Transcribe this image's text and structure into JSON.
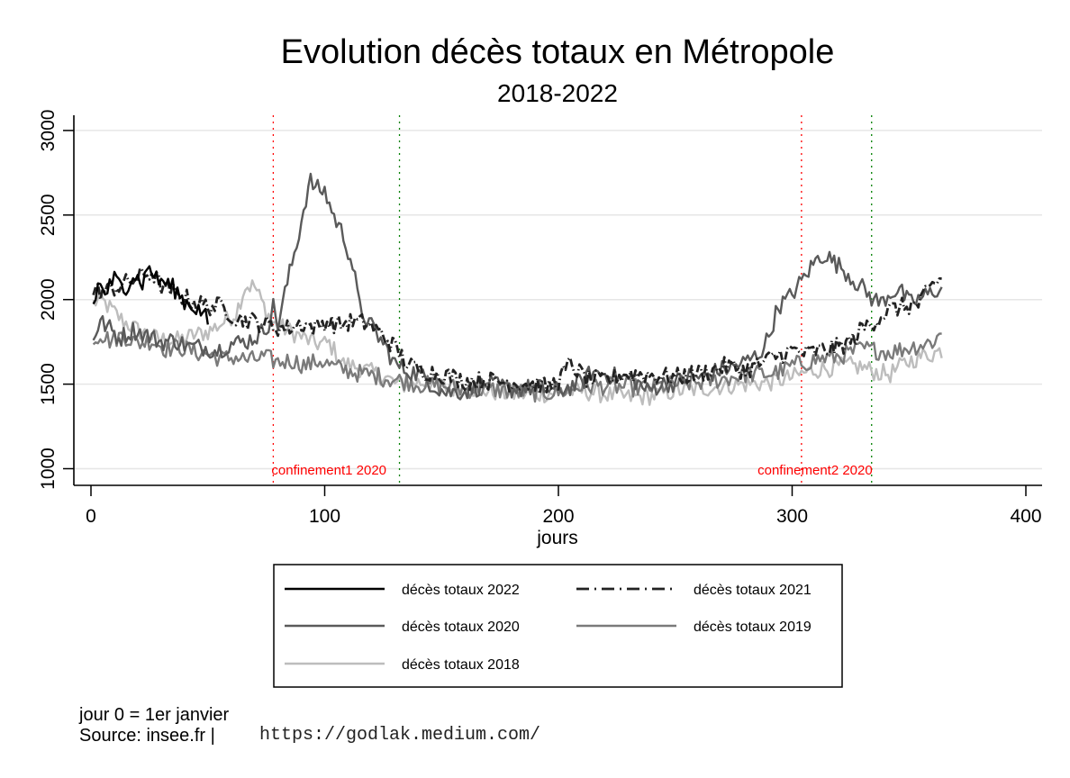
{
  "chart_data": {
    "type": "line",
    "title": "Evolution décès totaux en Métropole",
    "subtitle": "2018-2022",
    "xlabel": "jours",
    "ylabel": "",
    "xlim": [
      -7,
      405
    ],
    "ylim": [
      900,
      3100
    ],
    "xticks": [
      0,
      100,
      200,
      300,
      400
    ],
    "xtick_labels": [
      "0",
      "100",
      "200",
      "300",
      "400"
    ],
    "yticks": [
      1000,
      1500,
      2000,
      2500,
      3000
    ],
    "ytick_labels": [
      "1000",
      "1500",
      "2000",
      "2500",
      "3000"
    ],
    "grid": "horizontal",
    "legend_position": "bottom",
    "vlines": [
      {
        "x": 78,
        "color": "#ff0000",
        "style": "dotted",
        "label": "confinement1 2020"
      },
      {
        "x": 132,
        "color": "#008000",
        "style": "dotted",
        "label": ""
      },
      {
        "x": 304,
        "color": "#ff0000",
        "style": "dotted",
        "label": "confinement2 2020"
      },
      {
        "x": 334,
        "color": "#008000",
        "style": "dotted",
        "label": ""
      }
    ],
    "series": [
      {
        "name": "décès totaux 2022",
        "color": "#000000",
        "dash": "solid",
        "keypoints": [
          [
            1,
            1960
          ],
          [
            3,
            2090
          ],
          [
            6,
            2040
          ],
          [
            10,
            2120
          ],
          [
            14,
            2060
          ],
          [
            18,
            2150
          ],
          [
            22,
            2100
          ],
          [
            25,
            2200
          ],
          [
            28,
            2120
          ],
          [
            32,
            2100
          ],
          [
            36,
            2060
          ],
          [
            40,
            1990
          ],
          [
            44,
            1960
          ],
          [
            48,
            1920
          ],
          [
            50,
            1870
          ]
        ]
      },
      {
        "name": "décès totaux 2021",
        "color": "#222222",
        "dash": "dashdot",
        "keypoints": [
          [
            1,
            2050
          ],
          [
            6,
            2050
          ],
          [
            12,
            2080
          ],
          [
            20,
            2130
          ],
          [
            26,
            2160
          ],
          [
            30,
            2080
          ],
          [
            36,
            2040
          ],
          [
            42,
            2000
          ],
          [
            50,
            1960
          ],
          [
            56,
            1960
          ],
          [
            62,
            1890
          ],
          [
            70,
            1870
          ],
          [
            78,
            1840
          ],
          [
            84,
            1830
          ],
          [
            90,
            1860
          ],
          [
            96,
            1830
          ],
          [
            100,
            1870
          ],
          [
            106,
            1850
          ],
          [
            112,
            1870
          ],
          [
            118,
            1860
          ],
          [
            124,
            1800
          ],
          [
            130,
            1720
          ],
          [
            136,
            1610
          ],
          [
            142,
            1580
          ],
          [
            150,
            1560
          ],
          [
            160,
            1520
          ],
          [
            170,
            1520
          ],
          [
            180,
            1510
          ],
          [
            190,
            1500
          ],
          [
            195,
            1480
          ],
          [
            200,
            1520
          ],
          [
            205,
            1620
          ],
          [
            212,
            1530
          ],
          [
            220,
            1520
          ],
          [
            228,
            1560
          ],
          [
            235,
            1560
          ],
          [
            242,
            1550
          ],
          [
            250,
            1540
          ],
          [
            258,
            1560
          ],
          [
            266,
            1580
          ],
          [
            272,
            1610
          ],
          [
            280,
            1580
          ],
          [
            288,
            1630
          ],
          [
            294,
            1670
          ],
          [
            300,
            1700
          ],
          [
            306,
            1680
          ],
          [
            312,
            1700
          ],
          [
            320,
            1720
          ],
          [
            326,
            1760
          ],
          [
            330,
            1830
          ],
          [
            336,
            1880
          ],
          [
            342,
            1940
          ],
          [
            348,
            1960
          ],
          [
            354,
            1970
          ],
          [
            360,
            2080
          ],
          [
            364,
            2130
          ]
        ]
      },
      {
        "name": "décès totaux 2020",
        "color": "#5a5a5a",
        "dash": "solid",
        "keypoints": [
          [
            1,
            1780
          ],
          [
            4,
            1870
          ],
          [
            8,
            1830
          ],
          [
            12,
            1770
          ],
          [
            18,
            1820
          ],
          [
            24,
            1790
          ],
          [
            30,
            1750
          ],
          [
            36,
            1760
          ],
          [
            42,
            1720
          ],
          [
            48,
            1720
          ],
          [
            54,
            1700
          ],
          [
            60,
            1740
          ],
          [
            66,
            1750
          ],
          [
            72,
            1790
          ],
          [
            76,
            1860
          ],
          [
            78,
            1960
          ],
          [
            80,
            1850
          ],
          [
            84,
            2100
          ],
          [
            88,
            2330
          ],
          [
            92,
            2600
          ],
          [
            94,
            2700
          ],
          [
            96,
            2660
          ],
          [
            100,
            2640
          ],
          [
            104,
            2490
          ],
          [
            108,
            2380
          ],
          [
            112,
            2200
          ],
          [
            115,
            1950
          ],
          [
            118,
            1880
          ],
          [
            122,
            1800
          ],
          [
            126,
            1720
          ],
          [
            130,
            1620
          ],
          [
            134,
            1590
          ],
          [
            140,
            1560
          ],
          [
            146,
            1500
          ],
          [
            152,
            1450
          ],
          [
            160,
            1460
          ],
          [
            170,
            1500
          ],
          [
            180,
            1470
          ],
          [
            190,
            1480
          ],
          [
            200,
            1460
          ],
          [
            210,
            1510
          ],
          [
            214,
            1570
          ],
          [
            220,
            1560
          ],
          [
            226,
            1540
          ],
          [
            232,
            1530
          ],
          [
            238,
            1460
          ],
          [
            244,
            1500
          ],
          [
            250,
            1510
          ],
          [
            256,
            1550
          ],
          [
            262,
            1540
          ],
          [
            268,
            1580
          ],
          [
            274,
            1600
          ],
          [
            280,
            1630
          ],
          [
            286,
            1680
          ],
          [
            290,
            1780
          ],
          [
            294,
            1960
          ],
          [
            298,
            2000
          ],
          [
            302,
            2070
          ],
          [
            306,
            2150
          ],
          [
            310,
            2230
          ],
          [
            314,
            2270
          ],
          [
            318,
            2220
          ],
          [
            322,
            2180
          ],
          [
            326,
            2120
          ],
          [
            330,
            2070
          ],
          [
            334,
            2010
          ],
          [
            338,
            1980
          ],
          [
            342,
            2040
          ],
          [
            346,
            2060
          ],
          [
            350,
            1980
          ],
          [
            354,
            2000
          ],
          [
            358,
            2030
          ],
          [
            362,
            2060
          ],
          [
            364,
            2050
          ]
        ]
      },
      {
        "name": "décès totaux 2019",
        "color": "#7a7a7a",
        "dash": "solid",
        "keypoints": [
          [
            1,
            1760
          ],
          [
            4,
            1800
          ],
          [
            8,
            1760
          ],
          [
            14,
            1790
          ],
          [
            20,
            1740
          ],
          [
            26,
            1760
          ],
          [
            32,
            1710
          ],
          [
            38,
            1720
          ],
          [
            44,
            1690
          ],
          [
            50,
            1680
          ],
          [
            56,
            1650
          ],
          [
            62,
            1660
          ],
          [
            68,
            1640
          ],
          [
            74,
            1660
          ],
          [
            80,
            1630
          ],
          [
            86,
            1640
          ],
          [
            92,
            1610
          ],
          [
            98,
            1640
          ],
          [
            104,
            1600
          ],
          [
            110,
            1580
          ],
          [
            116,
            1560
          ],
          [
            122,
            1550
          ],
          [
            128,
            1530
          ],
          [
            134,
            1520
          ],
          [
            140,
            1500
          ],
          [
            150,
            1490
          ],
          [
            160,
            1470
          ],
          [
            170,
            1470
          ],
          [
            180,
            1460
          ],
          [
            190,
            1450
          ],
          [
            200,
            1450
          ],
          [
            210,
            1490
          ],
          [
            220,
            1490
          ],
          [
            230,
            1480
          ],
          [
            240,
            1480
          ],
          [
            250,
            1500
          ],
          [
            260,
            1510
          ],
          [
            270,
            1530
          ],
          [
            280,
            1560
          ],
          [
            290,
            1560
          ],
          [
            296,
            1580
          ],
          [
            300,
            1610
          ],
          [
            306,
            1630
          ],
          [
            312,
            1650
          ],
          [
            318,
            1660
          ],
          [
            324,
            1680
          ],
          [
            330,
            1710
          ],
          [
            336,
            1700
          ],
          [
            342,
            1690
          ],
          [
            348,
            1710
          ],
          [
            354,
            1730
          ],
          [
            360,
            1750
          ],
          [
            364,
            1800
          ]
        ]
      },
      {
        "name": "décès totaux 2018",
        "color": "#bdbdbd",
        "dash": "solid",
        "keypoints": [
          [
            1,
            1980
          ],
          [
            4,
            2000
          ],
          [
            8,
            1950
          ],
          [
            14,
            1870
          ],
          [
            20,
            1820
          ],
          [
            26,
            1780
          ],
          [
            32,
            1760
          ],
          [
            38,
            1760
          ],
          [
            44,
            1790
          ],
          [
            50,
            1810
          ],
          [
            56,
            1860
          ],
          [
            62,
            1920
          ],
          [
            64,
            2000
          ],
          [
            66,
            2080
          ],
          [
            70,
            2080
          ],
          [
            74,
            1960
          ],
          [
            78,
            1860
          ],
          [
            84,
            1820
          ],
          [
            90,
            1780
          ],
          [
            96,
            1740
          ],
          [
            102,
            1740
          ],
          [
            108,
            1620
          ],
          [
            114,
            1600
          ],
          [
            120,
            1570
          ],
          [
            126,
            1540
          ],
          [
            132,
            1490
          ],
          [
            138,
            1510
          ],
          [
            146,
            1510
          ],
          [
            154,
            1470
          ],
          [
            160,
            1480
          ],
          [
            170,
            1460
          ],
          [
            180,
            1440
          ],
          [
            190,
            1440
          ],
          [
            200,
            1450
          ],
          [
            210,
            1460
          ],
          [
            220,
            1440
          ],
          [
            230,
            1420
          ],
          [
            240,
            1430
          ],
          [
            250,
            1460
          ],
          [
            260,
            1470
          ],
          [
            270,
            1490
          ],
          [
            280,
            1500
          ],
          [
            290,
            1510
          ],
          [
            300,
            1540
          ],
          [
            306,
            1570
          ],
          [
            312,
            1590
          ],
          [
            318,
            1600
          ],
          [
            324,
            1610
          ],
          [
            330,
            1600
          ],
          [
            336,
            1570
          ],
          [
            342,
            1560
          ],
          [
            348,
            1620
          ],
          [
            354,
            1660
          ],
          [
            360,
            1680
          ],
          [
            364,
            1700
          ]
        ]
      }
    ],
    "notes": [
      "jour 0 = 1er janvier",
      "Source: insee.fr |",
      "https://godlak.medium.com/"
    ]
  },
  "legend": {
    "items": [
      {
        "label": "décès totaux 2022"
      },
      {
        "label": "décès totaux 2021"
      },
      {
        "label": "décès totaux 2020"
      },
      {
        "label": "décès totaux 2019"
      },
      {
        "label": "décès totaux 2018"
      }
    ]
  },
  "footer": {
    "note": "jour 0 = 1er janvier",
    "source": "Source: insee.fr |",
    "url": "https://godlak.medium.com/"
  }
}
